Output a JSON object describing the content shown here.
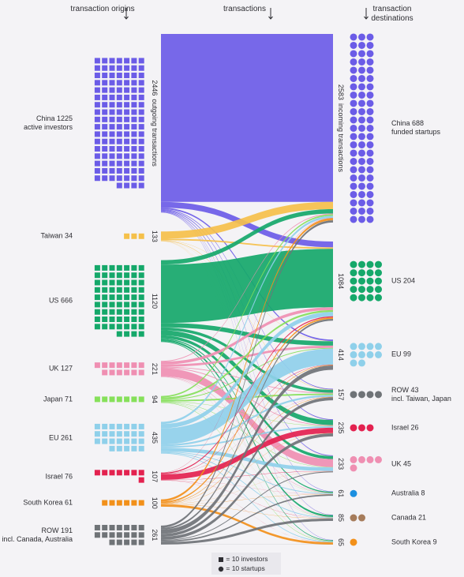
{
  "chart_data": {
    "type": "sankey",
    "headers": [
      "transaction origins",
      "transactions",
      "transaction destinations"
    ],
    "sources": [
      {
        "name": "China",
        "investors": 1225,
        "note": "active investors",
        "transactions": 2446,
        "transactions_note": "outgoing transactions",
        "color": "#6b5ce7"
      },
      {
        "name": "Taiwan",
        "investors": 34,
        "transactions": 133,
        "color": "#f5c04a"
      },
      {
        "name": "US",
        "investors": 666,
        "transactions": 1120,
        "color": "#15a86a"
      },
      {
        "name": "UK",
        "investors": 127,
        "transactions": 221,
        "color": "#ef8fb2"
      },
      {
        "name": "Japan",
        "investors": 71,
        "transactions": 94,
        "color": "#86e05a"
      },
      {
        "name": "EU",
        "investors": 261,
        "transactions": 435,
        "color": "#8fd0ea"
      },
      {
        "name": "Israel",
        "investors": 76,
        "transactions": 107,
        "color": "#e3214f"
      },
      {
        "name": "South Korea",
        "investors": 61,
        "transactions": 100,
        "color": "#f2901a"
      },
      {
        "name": "ROW",
        "investors": 191,
        "note": "incl. Canada, Australia",
        "transactions": 261,
        "color": "#6f7377"
      }
    ],
    "destinations": [
      {
        "name": "China",
        "startups": 688,
        "note": "funded startups",
        "transactions": 2583,
        "transactions_note": "incoming transactions",
        "color": "#6b5ce7"
      },
      {
        "name": "US",
        "startups": 204,
        "transactions": 1084,
        "color": "#15a86a"
      },
      {
        "name": "EU",
        "startups": 99,
        "transactions": 414,
        "color": "#8fd0ea"
      },
      {
        "name": "ROW",
        "startups": 43,
        "note": "incl. Taiwan, Japan",
        "transactions": 157,
        "color": "#6f7377"
      },
      {
        "name": "Israel",
        "startups": 26,
        "transactions": 235,
        "color": "#e3214f"
      },
      {
        "name": "UK",
        "startups": 45,
        "transactions": 233,
        "color": "#ef8fb2"
      },
      {
        "name": "Australia",
        "startups": 8,
        "transactions": 61,
        "color": "#1b8fe0"
      },
      {
        "name": "Canada",
        "startups": 21,
        "transactions": 85,
        "color": "#a67c5b"
      },
      {
        "name": "South Korea",
        "startups": 9,
        "transactions": 65,
        "color": "#f2901a"
      }
    ],
    "flows": [
      [
        2300,
        80,
        20,
        10,
        10,
        10,
        6,
        5,
        5
      ],
      [
        100,
        20,
        3,
        5,
        1,
        1,
        1,
        1,
        1
      ],
      [
        60,
        800,
        60,
        40,
        70,
        40,
        15,
        25,
        10
      ],
      [
        10,
        40,
        30,
        10,
        10,
        110,
        5,
        4,
        2
      ],
      [
        20,
        25,
        10,
        20,
        5,
        5,
        2,
        2,
        5
      ],
      [
        30,
        60,
        220,
        25,
        20,
        50,
        10,
        10,
        10
      ],
      [
        3,
        15,
        5,
        2,
        75,
        3,
        1,
        2,
        1
      ],
      [
        30,
        20,
        6,
        5,
        2,
        2,
        2,
        3,
        30
      ],
      [
        30,
        24,
        60,
        40,
        42,
        12,
        19,
        33,
        1
      ]
    ],
    "legend": [
      {
        "marker": "square",
        "unit": 10,
        "label": "= 10 investors"
      },
      {
        "marker": "circle",
        "unit": 10,
        "label": "= 10 startups"
      }
    ]
  }
}
